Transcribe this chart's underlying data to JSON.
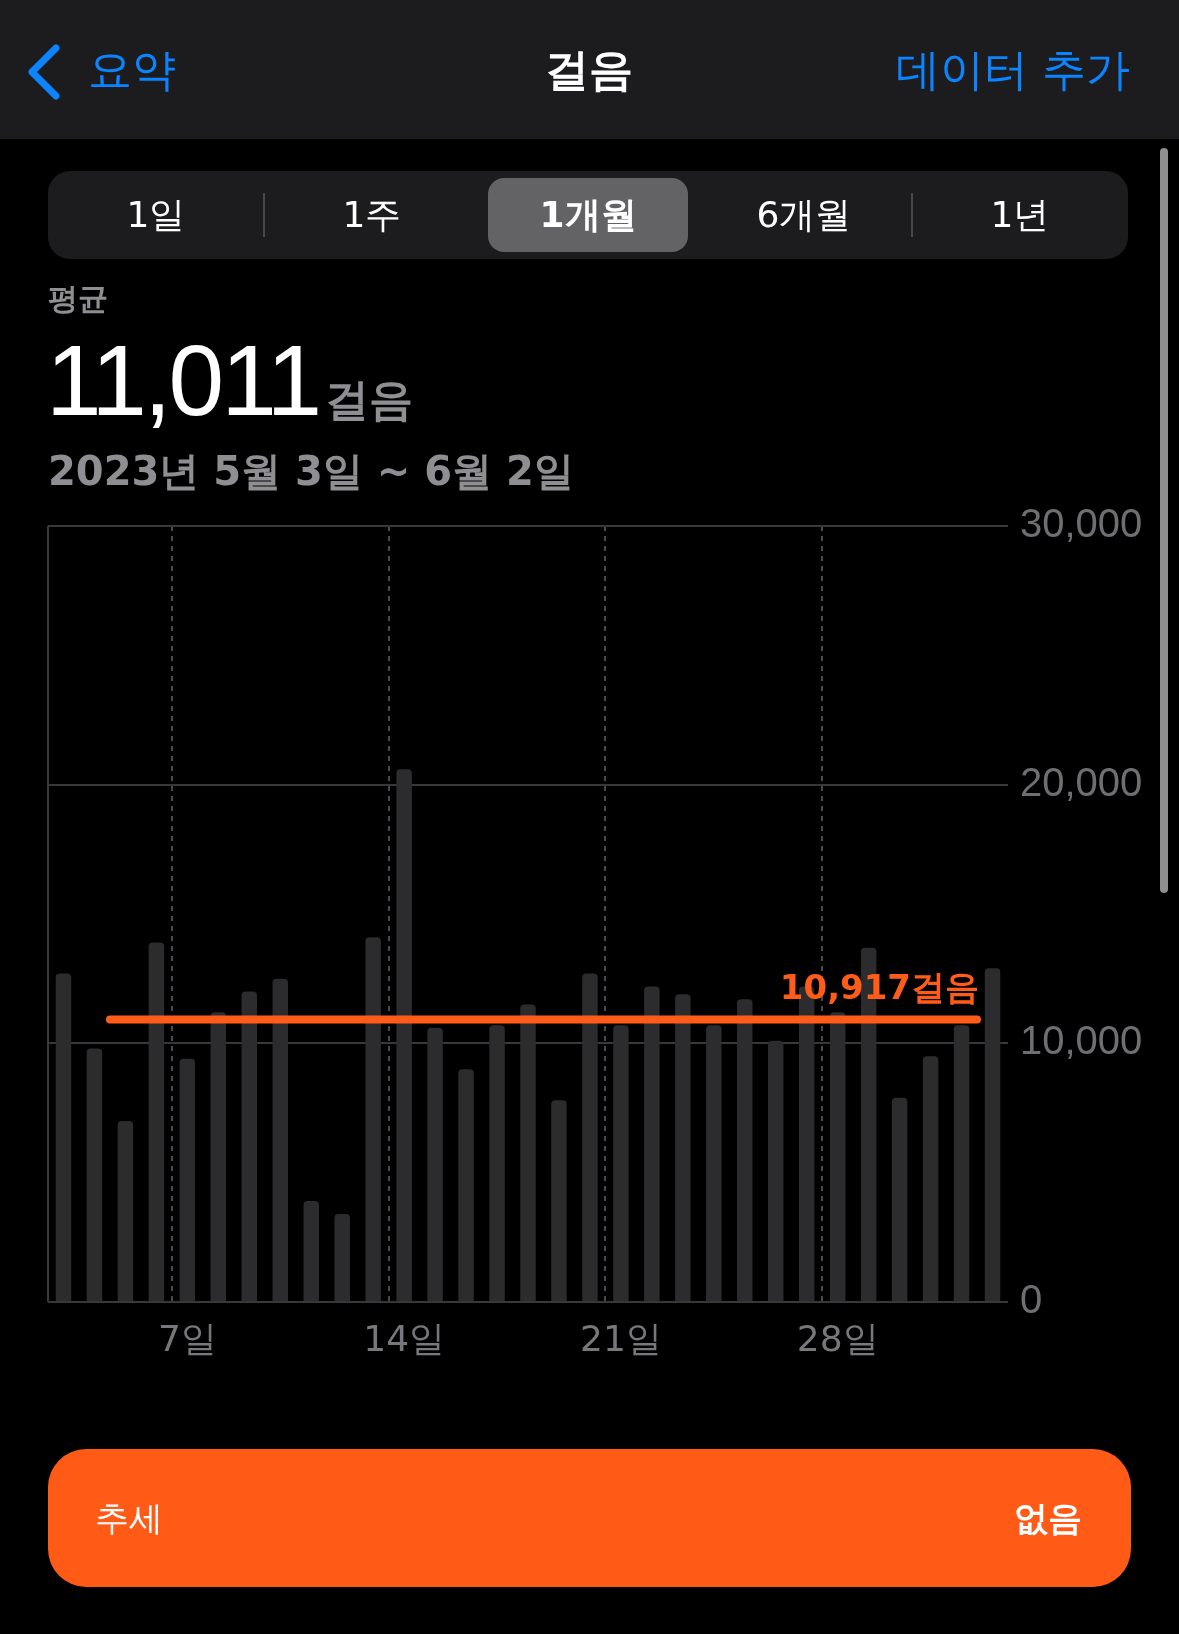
{
  "chart_data": {
    "type": "bar",
    "title": "걸음",
    "subtitle": "2023년 5월 3일 ~ 6월 2일",
    "categories": [
      null,
      null,
      null,
      null,
      "7일",
      null,
      null,
      null,
      null,
      null,
      null,
      "14일",
      null,
      null,
      null,
      null,
      null,
      null,
      "21일",
      null,
      null,
      null,
      null,
      null,
      null,
      "28일",
      null,
      null,
      null,
      null,
      null
    ],
    "values": [
      12700,
      9800,
      7000,
      13900,
      9400,
      11200,
      12000,
      12500,
      3900,
      3400,
      14100,
      20600,
      10600,
      9000,
      10700,
      11500,
      7800,
      12700,
      10700,
      12200,
      11900,
      10700,
      11700,
      10100,
      12200,
      11200,
      13700,
      7900,
      9500,
      10700,
      12900
    ],
    "color": "#2c2c2e",
    "ylim": [
      0,
      30000
    ],
    "yticks": [
      0,
      {
        "value": 10000,
        "label": "10,000"
      },
      {
        "value": 20000,
        "label": "20,000"
      },
      {
        "value": 30000,
        "label": "30,000"
      }
    ],
    "grid": true,
    "ref_lines": [
      {
        "axis": "y",
        "value": 10917,
        "label": "10,917걸음",
        "color": "#ff5c1a"
      }
    ],
    "annotations": [
      "요약",
      "데이터 추가",
      "1일",
      "1주",
      "1개월",
      "6개월",
      "1년",
      "평균",
      "11,011",
      "걸음",
      "추세",
      "없음"
    ]
  }
}
